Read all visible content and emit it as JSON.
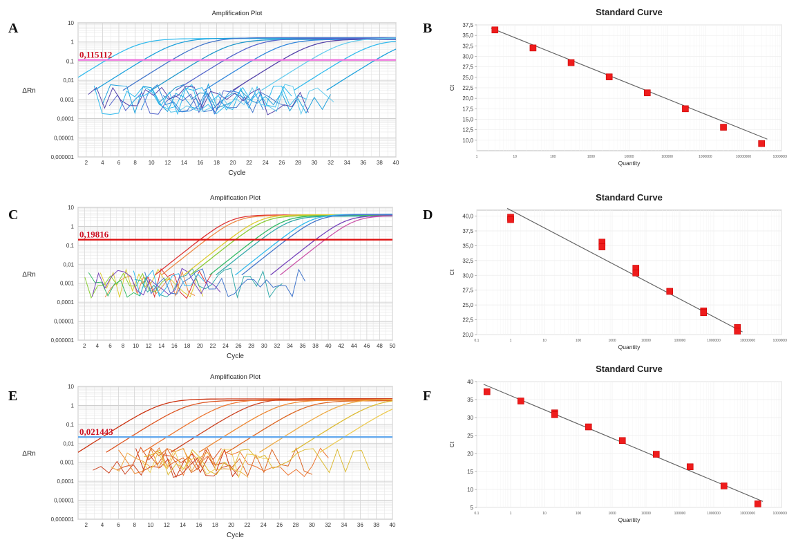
{
  "figure": {
    "panel_letters": [
      "A",
      "B",
      "C",
      "D",
      "E",
      "F"
    ]
  },
  "chart_data": [
    {
      "panel": "A",
      "type": "line",
      "title": "Amplification Plot",
      "xlabel": "Cycle",
      "ylabel": "ΔRn",
      "yscale": "log",
      "ylim": [
        1e-06,
        10
      ],
      "ytick_labels": [
        "0,000001",
        "0,00001",
        "0,0001",
        "0,001",
        "0,01",
        "0,1",
        "1",
        "10"
      ],
      "xlim": [
        1,
        40
      ],
      "xtick_labels": [
        "2",
        "4",
        "6",
        "8",
        "10",
        "12",
        "14",
        "16",
        "18",
        "20",
        "22",
        "24",
        "26",
        "28",
        "30",
        "32",
        "34",
        "36",
        "38",
        "40"
      ],
      "threshold": {
        "value": 0.115112,
        "label": "0,115112",
        "color": "#ee77dd"
      },
      "palette": [
        "#33bbee",
        "#1fa2dd",
        "#4477cc",
        "#2299cc",
        "#5566cc",
        "#3388dd",
        "#5544aa",
        "#66ccee"
      ],
      "curves_ct": [
        4.5,
        9,
        12.5,
        16,
        19,
        22.5,
        26,
        29.5,
        33.5,
        37.5
      ],
      "plateau": 1.5,
      "noise_range": [
        2,
        34
      ],
      "grid": true
    },
    {
      "panel": "B",
      "type": "scatter",
      "title": "Standard Curve",
      "xlabel": "Quantity",
      "ylabel": "Ct",
      "xscale": "log",
      "xlim": [
        1,
        100000000
      ],
      "ylim": [
        7.5,
        37.5
      ],
      "ytick_labels": [
        "10,0",
        "12,5",
        "15,0",
        "17,5",
        "20,0",
        "22,5",
        "25,0",
        "27,5",
        "30,0",
        "32,5",
        "35,0",
        "37,5"
      ],
      "xtick_labels": [
        "1",
        "10",
        "100",
        "1000",
        "10000",
        "100000",
        "1000000",
        "10000000",
        "100000000"
      ],
      "points": [
        {
          "x": 3,
          "y": 36.3
        },
        {
          "x": 30,
          "y": 32.0
        },
        {
          "x": 300,
          "y": 28.5
        },
        {
          "x": 3000,
          "y": 25.1
        },
        {
          "x": 30000,
          "y": 21.3
        },
        {
          "x": 300000,
          "y": 17.5
        },
        {
          "x": 3000000,
          "y": 13.1
        },
        {
          "x": 30000000,
          "y": 9.2
        }
      ],
      "fit": {
        "slope": -3.65,
        "intercept": 38.1
      }
    },
    {
      "panel": "C",
      "type": "line",
      "title": "Amplification Plot",
      "xlabel": "Cycle",
      "ylabel": "ΔRn",
      "yscale": "log",
      "ylim": [
        1e-06,
        10
      ],
      "ytick_labels": [
        "0,000001",
        "0,00001",
        "0,0001",
        "0,001",
        "0,01",
        "0,1",
        "1",
        "10"
      ],
      "xlim": [
        1,
        50
      ],
      "xtick_labels": [
        "2",
        "4",
        "6",
        "8",
        "10",
        "12",
        "14",
        "16",
        "18",
        "20",
        "22",
        "24",
        "26",
        "28",
        "30",
        "32",
        "34",
        "36",
        "38",
        "40",
        "42",
        "44",
        "46",
        "48",
        "50"
      ],
      "threshold": {
        "value": 0.19816,
        "label": "0,19816",
        "color": "#dd1111"
      },
      "palette": [
        "#dd3333",
        "#ee8844",
        "#ddcc33",
        "#88cc33",
        "#33bb66",
        "#33aaaa",
        "#33bbee",
        "#4477cc",
        "#7744bb",
        "#cc55aa"
      ],
      "curves_ct": [
        20,
        21,
        24.5,
        25.5,
        28.5,
        29.5,
        32.5,
        33.5,
        38,
        39.5
      ],
      "plateau": 4,
      "noise_range": [
        2,
        42
      ],
      "grid": true
    },
    {
      "panel": "D",
      "type": "scatter",
      "title": "Standard Curve",
      "xlabel": "Quantity",
      "ylabel": "Ct",
      "xscale": "log",
      "xlim": [
        0.1,
        100000000
      ],
      "ylim": [
        20.0,
        41.0
      ],
      "ytick_labels": [
        "20,0",
        "22,5",
        "25,0",
        "27,5",
        "30,0",
        "32,5",
        "35,0",
        "37,5",
        "40,0"
      ],
      "xtick_labels": [
        "0.1",
        "1",
        "10",
        "100",
        "1000",
        "10000",
        "100000",
        "1000000",
        "10000000",
        "100000000"
      ],
      "points": [
        {
          "x": 1,
          "y": 39.8
        },
        {
          "x": 1,
          "y": 39.4
        },
        {
          "x": 500,
          "y": 35.6
        },
        {
          "x": 500,
          "y": 34.8
        },
        {
          "x": 5000,
          "y": 31.2
        },
        {
          "x": 5000,
          "y": 30.4
        },
        {
          "x": 50000,
          "y": 27.3
        },
        {
          "x": 500000,
          "y": 24.0
        },
        {
          "x": 500000,
          "y": 23.7
        },
        {
          "x": 5000000,
          "y": 21.2
        },
        {
          "x": 5000000,
          "y": 20.6
        }
      ],
      "fit": {
        "slope": -3.0,
        "intercept": 41.0
      }
    },
    {
      "panel": "E",
      "type": "line",
      "title": "Amplification Plot",
      "xlabel": "Cycle",
      "ylabel": "ΔRn",
      "yscale": "log",
      "ylim": [
        1e-06,
        10
      ],
      "ytick_labels": [
        "0,000001",
        "0,00001",
        "0,0001",
        "0,001",
        "0,01",
        "0,1",
        "1",
        "10"
      ],
      "xlim": [
        1,
        40
      ],
      "xtick_labels": [
        "2",
        "4",
        "6",
        "8",
        "10",
        "12",
        "14",
        "16",
        "18",
        "20",
        "22",
        "24",
        "26",
        "28",
        "30",
        "32",
        "34",
        "36",
        "38",
        "40"
      ],
      "threshold": {
        "value": 0.021443,
        "label": "0,021443",
        "color": "#66aaee"
      },
      "palette": [
        "#cc3311",
        "#dd5522",
        "#ee7733",
        "#cc4422",
        "#ee8833",
        "#dd6622",
        "#eeaa44",
        "#ddbb33",
        "#eecc55"
      ],
      "curves_ct": [
        4,
        7.5,
        12,
        15.5,
        19,
        22.5,
        26.5,
        30.5,
        34
      ],
      "plateau": 2,
      "noise_range": [
        2,
        38
      ],
      "grid": true
    },
    {
      "panel": "F",
      "type": "scatter",
      "title": "Standard Curve",
      "xlabel": "Quantity",
      "ylabel": "Ct",
      "xscale": "log",
      "xlim": [
        0.1,
        100000000
      ],
      "ylim": [
        5,
        40
      ],
      "ytick_labels": [
        "5",
        "10",
        "15",
        "20",
        "25",
        "30",
        "35",
        "40"
      ],
      "xtick_labels": [
        "0.1",
        "1",
        "10",
        "100",
        "1000",
        "10000",
        "100000",
        "1000000",
        "10000000",
        "100000000"
      ],
      "points": [
        {
          "x": 0.2,
          "y": 37.2
        },
        {
          "x": 2,
          "y": 34.6
        },
        {
          "x": 20,
          "y": 31.3
        },
        {
          "x": 20,
          "y": 30.8
        },
        {
          "x": 200,
          "y": 27.4
        },
        {
          "x": 2000,
          "y": 23.6
        },
        {
          "x": 20000,
          "y": 19.8
        },
        {
          "x": 200000,
          "y": 16.3
        },
        {
          "x": 2000000,
          "y": 11.0
        },
        {
          "x": 20000000,
          "y": 6.0
        }
      ],
      "fit": {
        "slope": -3.95,
        "intercept": 36.1
      }
    }
  ]
}
